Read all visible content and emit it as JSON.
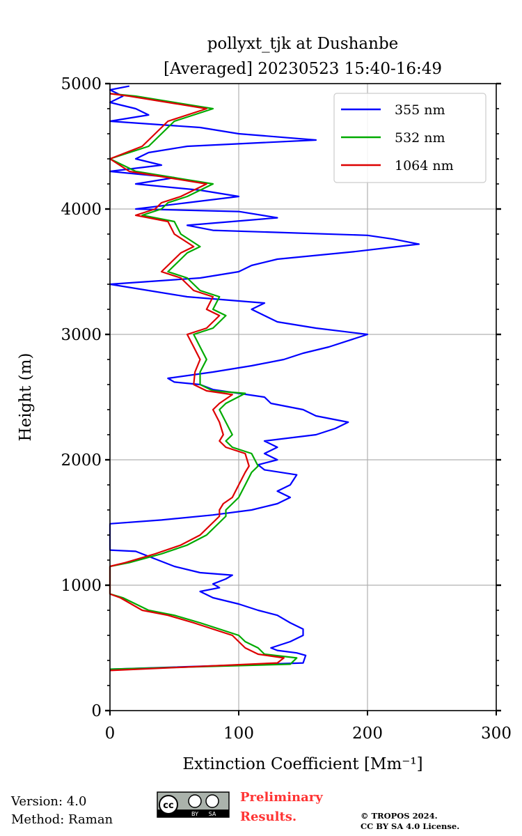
{
  "chart_data": {
    "type": "line",
    "title": [
      "pollyxt_tjk at Dushanbe",
      "[Averaged] 20230523 15:40-16:49"
    ],
    "xlabel": "Extinction Coefficient [Mm⁻¹]",
    "ylabel": "Height (m)",
    "xlim": [
      0,
      300
    ],
    "ylim": [
      0,
      5000
    ],
    "xticks": [
      0,
      100,
      200,
      300
    ],
    "yticks": [
      0,
      1000,
      2000,
      3000,
      4000,
      5000
    ],
    "grid": true,
    "legend_position": "top-right",
    "series": [
      {
        "name": "355 nm",
        "color": "#0000ff",
        "points": [
          [
            0,
            330
          ],
          [
            150,
            380
          ],
          [
            152,
            440
          ],
          [
            145,
            460
          ],
          [
            130,
            480
          ],
          [
            125,
            500
          ],
          [
            140,
            550
          ],
          [
            150,
            600
          ],
          [
            150,
            650
          ],
          [
            140,
            700
          ],
          [
            130,
            760
          ],
          [
            115,
            800
          ],
          [
            100,
            850
          ],
          [
            80,
            900
          ],
          [
            70,
            950
          ],
          [
            85,
            980
          ],
          [
            80,
            1010
          ],
          [
            90,
            1050
          ],
          [
            95,
            1080
          ],
          [
            70,
            1100
          ],
          [
            50,
            1150
          ],
          [
            30,
            1230
          ],
          [
            20,
            1270
          ],
          [
            0,
            1280
          ],
          [
            0,
            1490
          ],
          [
            40,
            1520
          ],
          [
            80,
            1560
          ],
          [
            110,
            1600
          ],
          [
            130,
            1650
          ],
          [
            140,
            1700
          ],
          [
            130,
            1750
          ],
          [
            140,
            1800
          ],
          [
            145,
            1880
          ],
          [
            120,
            1920
          ],
          [
            115,
            1960
          ],
          [
            130,
            2000
          ],
          [
            120,
            2050
          ],
          [
            130,
            2100
          ],
          [
            120,
            2150
          ],
          [
            160,
            2200
          ],
          [
            175,
            2250
          ],
          [
            185,
            2300
          ],
          [
            160,
            2350
          ],
          [
            150,
            2400
          ],
          [
            125,
            2450
          ],
          [
            120,
            2500
          ],
          [
            80,
            2560
          ],
          [
            70,
            2600
          ],
          [
            50,
            2620
          ],
          [
            45,
            2650
          ],
          [
            80,
            2700
          ],
          [
            110,
            2750
          ],
          [
            135,
            2800
          ],
          [
            150,
            2850
          ],
          [
            170,
            2900
          ],
          [
            200,
            3000
          ],
          [
            160,
            3050
          ],
          [
            130,
            3100
          ],
          [
            120,
            3150
          ],
          [
            110,
            3200
          ],
          [
            120,
            3250
          ],
          [
            60,
            3300
          ],
          [
            0,
            3400
          ],
          [
            70,
            3450
          ],
          [
            100,
            3500
          ],
          [
            110,
            3550
          ],
          [
            130,
            3600
          ],
          [
            190,
            3660
          ],
          [
            240,
            3720
          ],
          [
            220,
            3760
          ],
          [
            200,
            3790
          ],
          [
            80,
            3830
          ],
          [
            60,
            3870
          ],
          [
            130,
            3930
          ],
          [
            100,
            3980
          ],
          [
            20,
            4000
          ],
          [
            60,
            4050
          ],
          [
            100,
            4100
          ],
          [
            70,
            4150
          ],
          [
            20,
            4200
          ],
          [
            50,
            4250
          ],
          [
            0,
            4300
          ],
          [
            40,
            4350
          ],
          [
            20,
            4400
          ],
          [
            30,
            4450
          ],
          [
            60,
            4500
          ],
          [
            160,
            4550
          ],
          [
            100,
            4600
          ],
          [
            70,
            4650
          ],
          [
            0,
            4700
          ],
          [
            30,
            4750
          ],
          [
            20,
            4800
          ],
          [
            0,
            4850
          ],
          [
            10,
            4900
          ],
          [
            0,
            4950
          ],
          [
            15,
            4980
          ]
        ]
      },
      {
        "name": "532 nm",
        "color": "#00aa00",
        "points": [
          [
            0,
            330
          ],
          [
            140,
            370
          ],
          [
            145,
            420
          ],
          [
            120,
            450
          ],
          [
            115,
            500
          ],
          [
            105,
            550
          ],
          [
            100,
            600
          ],
          [
            85,
            650
          ],
          [
            70,
            700
          ],
          [
            50,
            760
          ],
          [
            30,
            800
          ],
          [
            10,
            900
          ],
          [
            0,
            930
          ],
          [
            0,
            1150
          ],
          [
            15,
            1180
          ],
          [
            40,
            1250
          ],
          [
            60,
            1320
          ],
          [
            75,
            1400
          ],
          [
            85,
            1500
          ],
          [
            90,
            1550
          ],
          [
            90,
            1600
          ],
          [
            95,
            1650
          ],
          [
            100,
            1700
          ],
          [
            105,
            1800
          ],
          [
            110,
            1900
          ],
          [
            115,
            1950
          ],
          [
            110,
            2050
          ],
          [
            95,
            2100
          ],
          [
            90,
            2150
          ],
          [
            95,
            2200
          ],
          [
            90,
            2300
          ],
          [
            85,
            2400
          ],
          [
            90,
            2450
          ],
          [
            105,
            2530
          ],
          [
            80,
            2550
          ],
          [
            70,
            2600
          ],
          [
            70,
            2700
          ],
          [
            75,
            2800
          ],
          [
            70,
            2900
          ],
          [
            65,
            3000
          ],
          [
            80,
            3050
          ],
          [
            85,
            3100
          ],
          [
            90,
            3150
          ],
          [
            80,
            3200
          ],
          [
            85,
            3300
          ],
          [
            70,
            3350
          ],
          [
            60,
            3450
          ],
          [
            45,
            3500
          ],
          [
            50,
            3550
          ],
          [
            55,
            3600
          ],
          [
            60,
            3650
          ],
          [
            70,
            3700
          ],
          [
            55,
            3800
          ],
          [
            50,
            3900
          ],
          [
            25,
            3950
          ],
          [
            40,
            4000
          ],
          [
            45,
            4050
          ],
          [
            60,
            4100
          ],
          [
            80,
            4200
          ],
          [
            50,
            4250
          ],
          [
            20,
            4300
          ],
          [
            0,
            4400
          ],
          [
            30,
            4500
          ],
          [
            40,
            4600
          ],
          [
            50,
            4700
          ],
          [
            80,
            4800
          ],
          [
            20,
            4900
          ],
          [
            0,
            4920
          ]
        ]
      },
      {
        "name": "1064 nm",
        "color": "#dd0000",
        "points": [
          [
            0,
            320
          ],
          [
            130,
            380
          ],
          [
            135,
            420
          ],
          [
            115,
            450
          ],
          [
            105,
            500
          ],
          [
            100,
            550
          ],
          [
            95,
            600
          ],
          [
            80,
            650
          ],
          [
            65,
            700
          ],
          [
            45,
            760
          ],
          [
            25,
            800
          ],
          [
            8,
            900
          ],
          [
            0,
            930
          ],
          [
            0,
            1150
          ],
          [
            12,
            1180
          ],
          [
            35,
            1250
          ],
          [
            55,
            1320
          ],
          [
            70,
            1400
          ],
          [
            80,
            1500
          ],
          [
            85,
            1550
          ],
          [
            85,
            1600
          ],
          [
            88,
            1650
          ],
          [
            95,
            1700
          ],
          [
            100,
            1800
          ],
          [
            105,
            1900
          ],
          [
            108,
            1950
          ],
          [
            105,
            2050
          ],
          [
            90,
            2100
          ],
          [
            85,
            2150
          ],
          [
            88,
            2200
          ],
          [
            85,
            2300
          ],
          [
            80,
            2400
          ],
          [
            85,
            2450
          ],
          [
            95,
            2520
          ],
          [
            75,
            2550
          ],
          [
            65,
            2600
          ],
          [
            66,
            2700
          ],
          [
            70,
            2800
          ],
          [
            65,
            2900
          ],
          [
            60,
            3000
          ],
          [
            75,
            3050
          ],
          [
            80,
            3100
          ],
          [
            85,
            3150
          ],
          [
            75,
            3200
          ],
          [
            80,
            3300
          ],
          [
            65,
            3350
          ],
          [
            55,
            3450
          ],
          [
            40,
            3500
          ],
          [
            45,
            3550
          ],
          [
            50,
            3600
          ],
          [
            55,
            3650
          ],
          [
            65,
            3700
          ],
          [
            50,
            3800
          ],
          [
            45,
            3900
          ],
          [
            20,
            3950
          ],
          [
            35,
            4000
          ],
          [
            40,
            4050
          ],
          [
            55,
            4100
          ],
          [
            75,
            4200
          ],
          [
            45,
            4250
          ],
          [
            15,
            4300
          ],
          [
            0,
            4400
          ],
          [
            25,
            4500
          ],
          [
            35,
            4600
          ],
          [
            45,
            4700
          ],
          [
            75,
            4800
          ],
          [
            15,
            4900
          ],
          [
            0,
            4920
          ]
        ]
      }
    ]
  },
  "footer": {
    "version": "Version: 4.0",
    "method": "Method: Raman",
    "preliminary_1": "Preliminary",
    "preliminary_2": "Results.",
    "copyright_1": "© TROPOS 2024.",
    "copyright_2": "CC BY SA 4.0 License.",
    "cc_badge": {
      "cc": "cc",
      "by": "BY",
      "sa": "SA"
    }
  }
}
